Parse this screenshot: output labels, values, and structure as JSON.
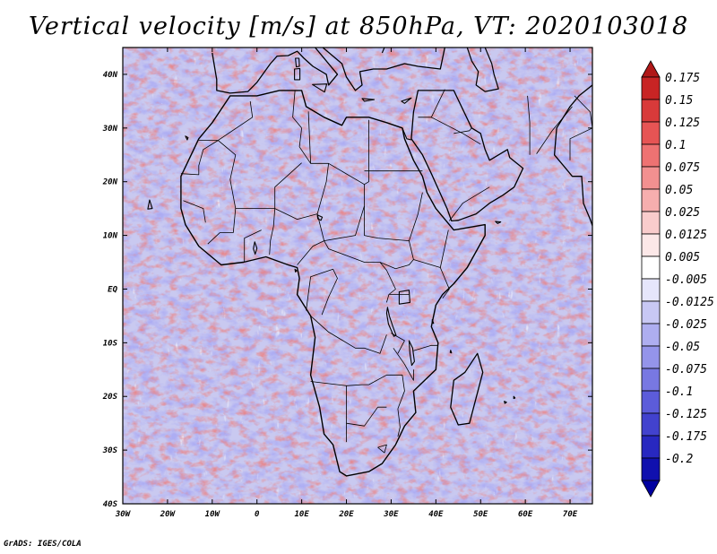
{
  "title": "Vertical velocity [m/s] at 850hPa, VT: 2020103018",
  "credit": "GrADS: IGES/COLA",
  "map": {
    "lon_range": [
      -30,
      75
    ],
    "lat_range": [
      -40,
      45
    ],
    "x_ticks": [
      {
        "value": -30,
        "label": "30W"
      },
      {
        "value": -20,
        "label": "20W"
      },
      {
        "value": -10,
        "label": "10W"
      },
      {
        "value": 0,
        "label": "0"
      },
      {
        "value": 10,
        "label": "10E"
      },
      {
        "value": 20,
        "label": "20E"
      },
      {
        "value": 30,
        "label": "30E"
      },
      {
        "value": 40,
        "label": "40E"
      },
      {
        "value": 50,
        "label": "50E"
      },
      {
        "value": 60,
        "label": "60E"
      },
      {
        "value": 70,
        "label": "70E"
      }
    ],
    "y_ticks": [
      {
        "value": 40,
        "label": "40N"
      },
      {
        "value": 30,
        "label": "30N"
      },
      {
        "value": 20,
        "label": "20N"
      },
      {
        "value": 10,
        "label": "10N"
      },
      {
        "value": 0,
        "label": "EQ"
      },
      {
        "value": -10,
        "label": "10S"
      },
      {
        "value": -20,
        "label": "20S"
      },
      {
        "value": -30,
        "label": "30S"
      },
      {
        "value": -40,
        "label": "40S"
      }
    ]
  },
  "colorbar": {
    "colors": [
      "#b01818",
      "#c82424",
      "#d83a3a",
      "#e65454",
      "#ee7272",
      "#f29090",
      "#f6aeae",
      "#f9cccc",
      "#fce8e8",
      "#ffffff",
      "#e6e6fb",
      "#c8c8f4",
      "#aeaef0",
      "#9494ea",
      "#7878e2",
      "#5c5cda",
      "#4242ce",
      "#2828c0",
      "#1010ae",
      "#0000a0"
    ],
    "labels": [
      "0.175",
      "0.15",
      "0.125",
      "0.1",
      "0.075",
      "0.05",
      "0.025",
      "0.0125",
      "0.005",
      "-0.005",
      "-0.0125",
      "-0.025",
      "-0.05",
      "-0.075",
      "-0.1",
      "-0.125",
      "-0.175",
      "-0.2"
    ]
  },
  "colors": {
    "updraft": "#d84040",
    "downdraft": "#6a6ae0",
    "coastline": "#000000"
  }
}
